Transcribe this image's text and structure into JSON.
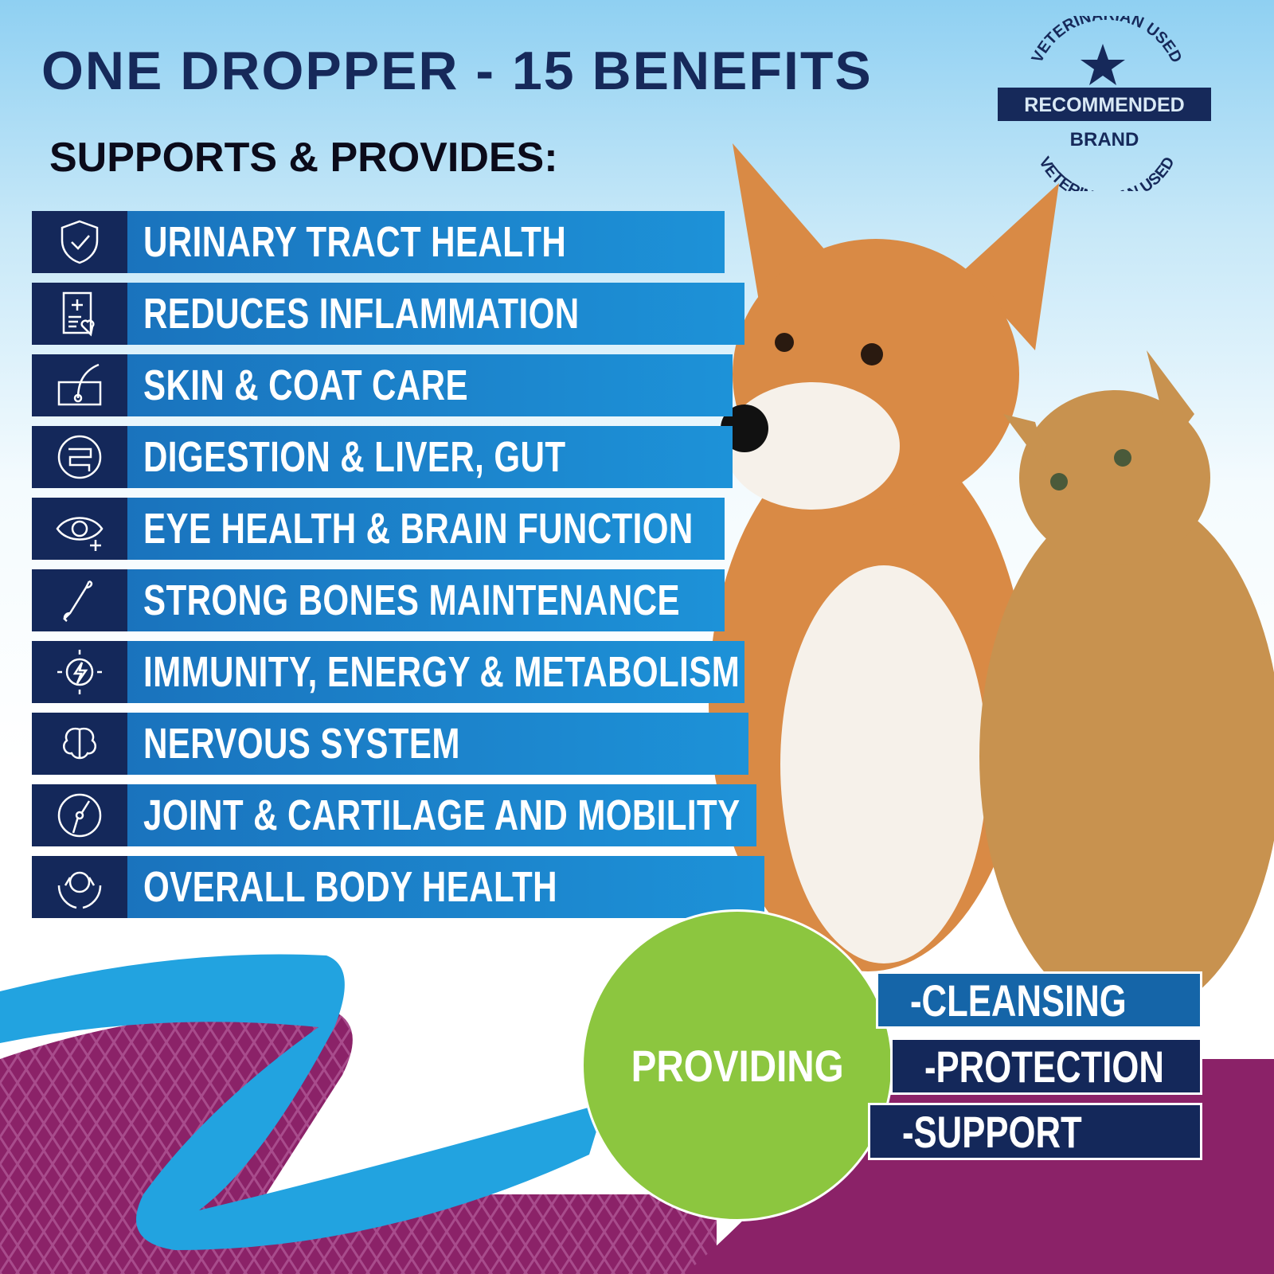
{
  "header": {
    "title": "ONE DROPPER - 15 BENEFITS",
    "subtitle": "SUPPORTS & PROVIDES:"
  },
  "badge": {
    "top_arc": "VETERINARIAN USED",
    "label": "RECOMMENDED",
    "sub": "BRAND",
    "bottom_arc": "VETERINARIAN USED"
  },
  "benefits": [
    {
      "label": "URINARY TRACT HEALTH",
      "icon": "shield-check-icon"
    },
    {
      "label": "REDUCES INFLAMMATION",
      "icon": "medical-report-heart-icon"
    },
    {
      "label": "SKIN & COAT CARE",
      "icon": "skin-hair-follicle-icon"
    },
    {
      "label": "DIGESTION & LIVER, GUT",
      "icon": "intestine-icon"
    },
    {
      "label": "EYE HEALTH & BRAIN FUNCTION",
      "icon": "eye-plus-icon"
    },
    {
      "label": "STRONG BONES MAINTENANCE",
      "icon": "bone-icon"
    },
    {
      "label": "IMMUNITY, ENERGY & METABOLISM",
      "icon": "energy-bolt-icon"
    },
    {
      "label": "NERVOUS SYSTEM",
      "icon": "brain-icon"
    },
    {
      "label": "JOINT & CARTILAGE AND MOBILITY",
      "icon": "joint-icon"
    },
    {
      "label": "OVERALL BODY HEALTH",
      "icon": "pet-hands-icon"
    }
  ],
  "providing": {
    "label": "PROVIDING",
    "items": [
      "-CLEANSING",
      "-PROTECTION",
      "-SUPPORT"
    ]
  },
  "colors": {
    "navy": "#14285a",
    "blue": "#1d8fd6",
    "green": "#8cc63f",
    "purple": "#8b2268",
    "swoosh": "#22a3e0"
  }
}
